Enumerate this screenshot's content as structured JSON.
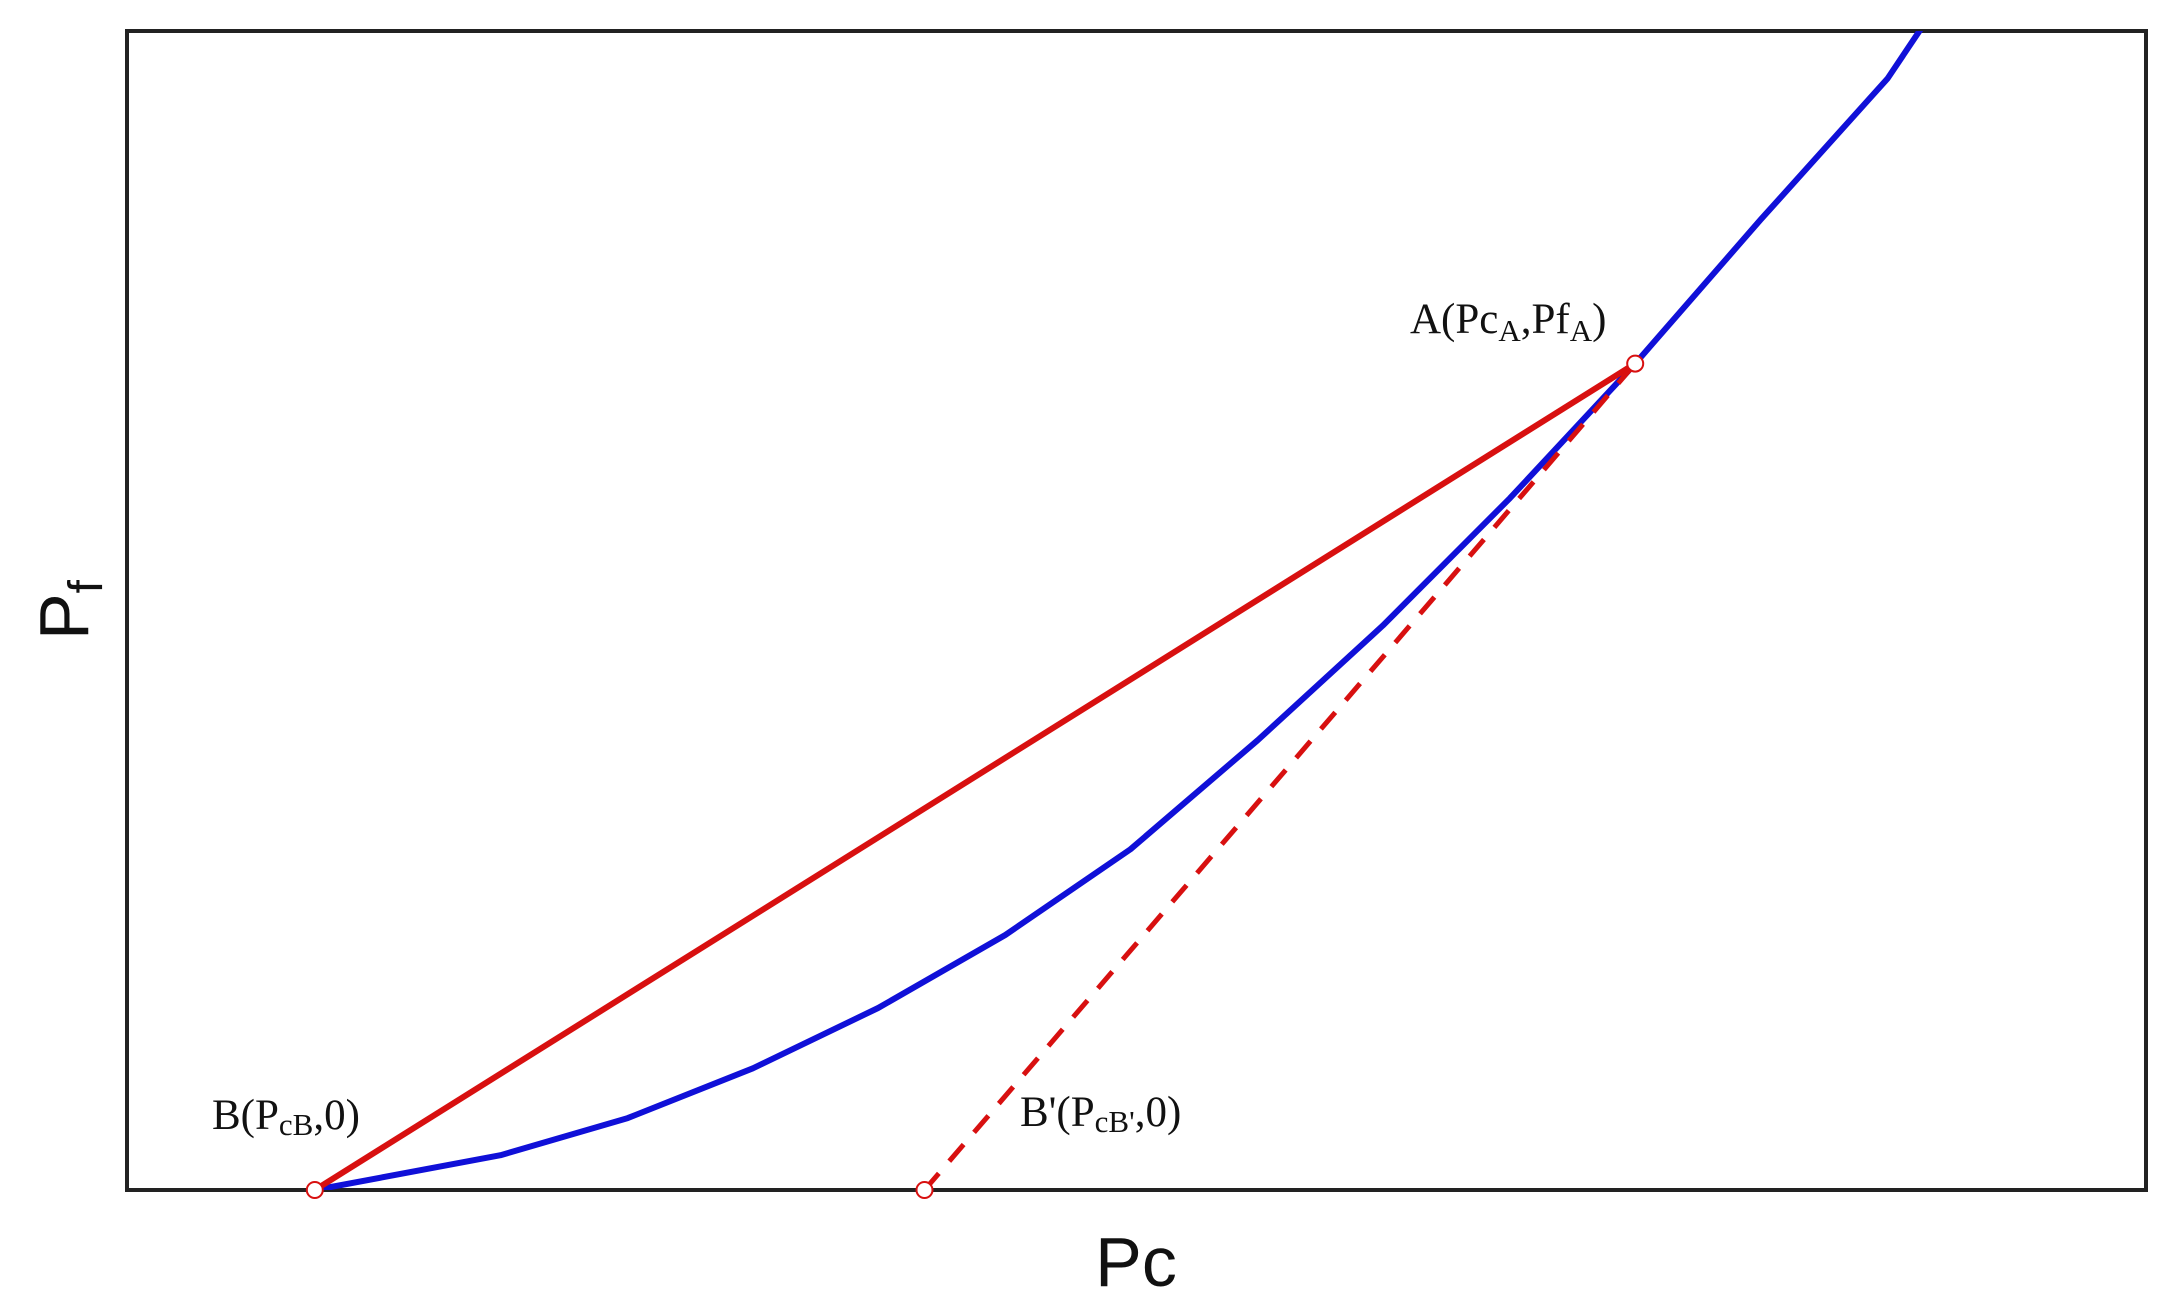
{
  "chart_data": {
    "type": "line",
    "xlabel": "Pc",
    "ylabel": "P",
    "ylabel_sub": "f",
    "xlim": [
      0,
      100
    ],
    "ylim": [
      0,
      100
    ],
    "grid": false,
    "ticks": false,
    "series": [
      {
        "style": "solid",
        "color": "#1010d8",
        "x": [
          9.3,
          18.5,
          24.8,
          31.0,
          37.2,
          43.5,
          49.7,
          56.0,
          62.2,
          68.5,
          74.7,
          80.9,
          87.2,
          93.4
        ],
        "y": [
          0.0,
          3.0,
          6.2,
          10.5,
          15.7,
          22.0,
          29.4,
          38.8,
          48.7,
          59.7,
          71.3,
          83.7,
          95.9,
          112.0
        ]
      },
      {
        "style": "solid",
        "color": "#d81010",
        "x": [
          9.3,
          74.7
        ],
        "y": [
          0.0,
          71.3
        ]
      },
      {
        "style": "dashed",
        "color": "#d81010",
        "x": [
          39.5,
          74.7
        ],
        "y": [
          0.0,
          71.3
        ]
      }
    ],
    "points": [
      {
        "x": 74.7,
        "y": 71.3,
        "color": "#d81010"
      },
      {
        "x": 9.3,
        "y": 0.0,
        "color": "#d81010"
      },
      {
        "x": 39.5,
        "y": 0.0,
        "color": "#d81010"
      }
    ],
    "annotations": {
      "a": {
        "main": "A(Pc",
        "sub1": "A",
        "mid": ",Pf",
        "sub2": "A",
        "end": ")"
      },
      "b": {
        "main": "B(P",
        "sub1": "cB",
        "end": ",0)"
      },
      "bp": {
        "main": "B'(P",
        "sub1": "cB'",
        "end": ",0)"
      }
    }
  }
}
